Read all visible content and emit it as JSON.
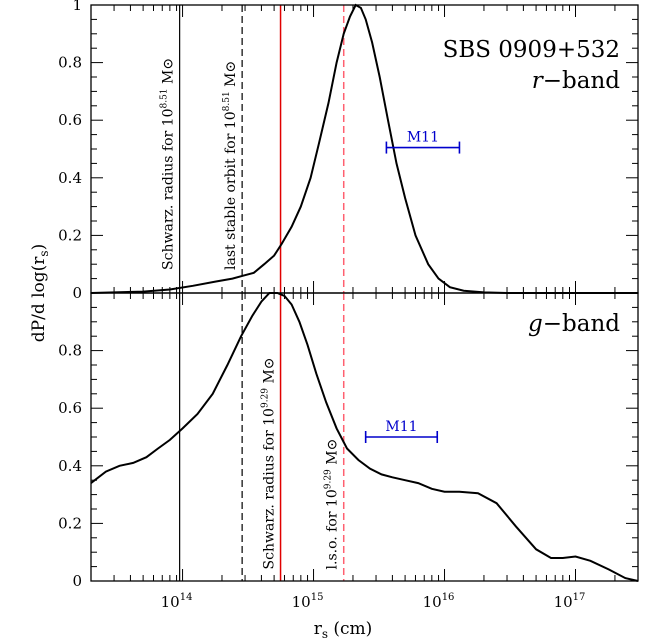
{
  "chart_data": [
    {
      "type": "line",
      "panel": "top",
      "title": "SBS  0909+532",
      "subtitle": "r−band",
      "xlabel": "r_s (cm)",
      "ylabel": "dP/d log(r_s)",
      "xscale": "log",
      "xlim": [
        20000000000000.0,
        3e+17
      ],
      "ylim": [
        0,
        1
      ],
      "yticks": [
        "0",
        "0.2",
        "0.4",
        "0.6",
        "0.8",
        "1"
      ],
      "series": [
        {
          "color": "#000000",
          "x": [
            20000000000000.0,
            50000000000000.0,
            80000000000000.0,
            120000000000000.0,
            180000000000000.0,
            240000000000000.0,
            290000000000000.0,
            350000000000000.0,
            420000000000000.0,
            500000000000000.0,
            570000000000000.0,
            680000000000000.0,
            800000000000000.0,
            950000000000000.0,
            1100000000000000.0,
            1300000000000000.0,
            1500000000000000.0,
            1700000000000000.0,
            1900000000000000.0,
            2100000000000000.0,
            2300000000000000.0,
            2500000000000000.0,
            2800000000000000.0,
            3200000000000000.0,
            3700000000000000.0,
            4300000000000000.0,
            5000000000000000.0,
            6000000000000000.0,
            7500000000000000.0,
            9000000000000000.0,
            1.1e+16,
            1.4e+16,
            2e+16,
            3e+16,
            5e+16,
            1e+17,
            3e+17
          ],
          "values": [
            0.0,
            0.005,
            0.012,
            0.025,
            0.04,
            0.05,
            0.06,
            0.07,
            0.1,
            0.13,
            0.17,
            0.23,
            0.3,
            0.4,
            0.52,
            0.66,
            0.8,
            0.9,
            0.96,
            1.0,
            0.99,
            0.95,
            0.87,
            0.75,
            0.6,
            0.45,
            0.33,
            0.2,
            0.1,
            0.05,
            0.02,
            0.008,
            0.002,
            0.0,
            0.0,
            0.0,
            0.0
          ]
        }
      ],
      "vlines": [
        {
          "x": 95000000000000.0,
          "color": "#000000",
          "style": "solid",
          "label": "Schwarz. radius for 10",
          "exp": "8.51",
          "unit": "M⊙"
        },
        {
          "x": 285000000000000.0,
          "color": "#000000",
          "style": "dashed",
          "label": "last stable orbit for 10",
          "exp": "8.51",
          "unit": "M⊙"
        },
        {
          "x": 560000000000000.0,
          "color": "#e00000",
          "style": "solid"
        },
        {
          "x": 1700000000000000.0,
          "color": "#ff6070",
          "style": "dashed"
        }
      ],
      "errorbar": {
        "label": "M11",
        "xmin": 3600000000000000.0,
        "xmax": 1.3e+16,
        "y": 0.505,
        "color": "#0000cc"
      }
    },
    {
      "type": "line",
      "panel": "bottom",
      "subtitle": "g−band",
      "xlabel": "r_s (cm)",
      "ylabel": "dP/d log(r_s)",
      "xscale": "log",
      "xlim": [
        20000000000000.0,
        3e+17
      ],
      "ylim": [
        0,
        1
      ],
      "yticks": [
        "0",
        "0.2",
        "0.4",
        "0.6",
        "0.8"
      ],
      "xticks": [
        {
          "base": "10",
          "exp": "14"
        },
        {
          "base": "10",
          "exp": "15"
        },
        {
          "base": "10",
          "exp": "16"
        },
        {
          "base": "10",
          "exp": "17"
        }
      ],
      "series": [
        {
          "color": "#000000",
          "x": [
            20000000000000.0,
            26000000000000.0,
            33000000000000.0,
            42000000000000.0,
            53000000000000.0,
            65000000000000.0,
            80000000000000.0,
            100000000000000.0,
            130000000000000.0,
            170000000000000.0,
            220000000000000.0,
            280000000000000.0,
            340000000000000.0,
            400000000000000.0,
            460000000000000.0,
            530000000000000.0,
            600000000000000.0,
            680000000000000.0,
            780000000000000.0,
            900000000000000.0,
            1050000000000000.0,
            1250000000000000.0,
            1500000000000000.0,
            1800000000000000.0,
            2200000000000000.0,
            2700000000000000.0,
            3300000000000000.0,
            4000000000000000.0,
            5000000000000000.0,
            6300000000000000.0,
            8000000000000000.0,
            1e+16,
            1.3e+16,
            1.8e+16,
            2.5e+16,
            3.5e+16,
            5e+16,
            6.5e+16,
            8e+16,
            1e+17,
            1.3e+17,
            1.8e+17,
            2.4e+17,
            3e+17
          ],
          "values": [
            0.34,
            0.38,
            0.4,
            0.41,
            0.43,
            0.46,
            0.49,
            0.53,
            0.58,
            0.65,
            0.75,
            0.85,
            0.92,
            0.97,
            1.0,
            1.0,
            0.99,
            0.96,
            0.9,
            0.82,
            0.72,
            0.62,
            0.53,
            0.46,
            0.42,
            0.39,
            0.37,
            0.36,
            0.35,
            0.34,
            0.32,
            0.31,
            0.31,
            0.305,
            0.27,
            0.19,
            0.11,
            0.08,
            0.08,
            0.085,
            0.07,
            0.04,
            0.01,
            0.0
          ]
        }
      ],
      "vlines": [
        {
          "x": 95000000000000.0,
          "color": "#000000",
          "style": "solid"
        },
        {
          "x": 285000000000000.0,
          "color": "#000000",
          "style": "dashed"
        },
        {
          "x": 560000000000000.0,
          "color": "#e00000",
          "style": "solid",
          "label": "Schwarz. radius for 10",
          "exp": "9.29",
          "unit": "M⊙"
        },
        {
          "x": 1700000000000000.0,
          "color": "#ff6070",
          "style": "dashed",
          "label": "l.s.o. for 10",
          "exp": "9.29",
          "unit": "M⊙"
        }
      ],
      "errorbar": {
        "label": "M11",
        "xmin": 2500000000000000.0,
        "xmax": 8800000000000000.0,
        "y": 0.5,
        "color": "#0000cc"
      }
    }
  ]
}
